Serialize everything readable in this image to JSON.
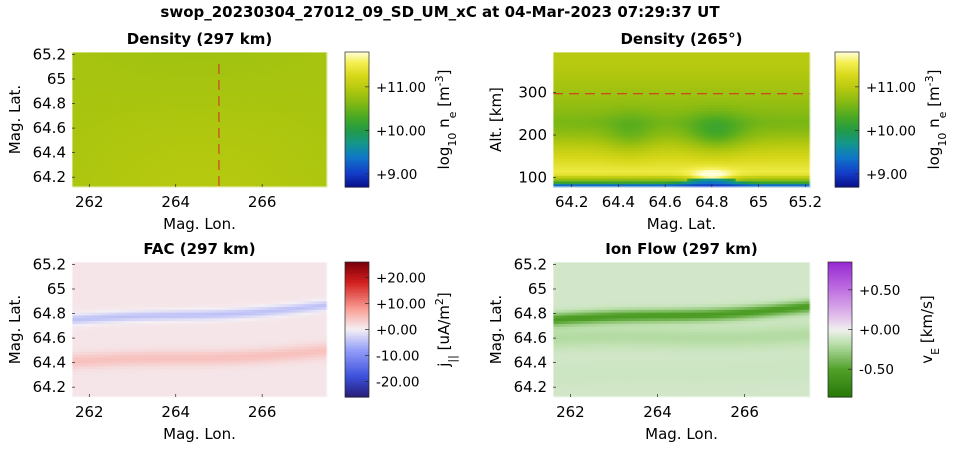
{
  "figure": {
    "title": "swop_20230304_27012_09_SD_UM_xC at 04-Mar-2023 07:29:37 UT"
  },
  "chart_data": [
    {
      "id": "density-horizontal",
      "type": "heatmap",
      "title": "Density (297 km)",
      "xlabel": "Mag. Lon.",
      "ylabel": "Mag. Lat.",
      "xlim": [
        261.6,
        267.5
      ],
      "ylim": [
        64.12,
        65.22
      ],
      "x_ticks": [
        "262",
        "264",
        "266"
      ],
      "x_tick_values": [
        262,
        264,
        266
      ],
      "y_ticks": [
        "64.2",
        "64.4",
        "64.6",
        "64.8",
        "65",
        "65.2"
      ],
      "y_tick_values": [
        64.2,
        64.4,
        64.6,
        64.8,
        65.0,
        65.2
      ],
      "colorbar": {
        "label_parts": [
          "log",
          "10",
          " n",
          "e",
          " [m",
          "-3",
          "]"
        ],
        "ticks": [
          "+9.00",
          "+10.00",
          "+11.00"
        ],
        "tick_values": [
          9,
          10,
          11
        ],
        "range": [
          8.7,
          11.8
        ],
        "colormap": "parula"
      },
      "field_value": 10.9,
      "marker_line": {
        "orientation": "vertical",
        "value": 265.0,
        "color": "#d62728"
      }
    },
    {
      "id": "density-vertical",
      "type": "heatmap",
      "title": "Density (265°)",
      "xlabel": "Mag. Lat.",
      "ylabel": "Alt. [km]",
      "xlim": [
        64.12,
        65.22
      ],
      "ylim": [
        78,
        395
      ],
      "x_ticks": [
        "64.2",
        "64.4",
        "64.6",
        "64.8",
        "65",
        "65.2"
      ],
      "x_tick_values": [
        64.2,
        64.4,
        64.6,
        64.8,
        65.0,
        65.2
      ],
      "y_ticks": [
        "100",
        "200",
        "300"
      ],
      "y_tick_values": [
        100,
        200,
        300
      ],
      "colorbar": {
        "label_parts": [
          "log",
          "10",
          " n",
          "e",
          " [m",
          "-3",
          "]"
        ],
        "ticks": [
          "+9.00",
          "+10.00",
          "+11.00"
        ],
        "tick_values": [
          9,
          10,
          11
        ],
        "range": [
          8.7,
          11.8
        ],
        "colormap": "parula"
      },
      "profile": {
        "bottom_value": 8.9,
        "peak_altitude_km": 110,
        "peak_value": 11.5,
        "top_value": 10.8,
        "bright_spot": {
          "lat": 64.8,
          "alt_km": 95,
          "value": 11.8
        },
        "dim_spot": {
          "lat": 64.82,
          "alt_km": 205,
          "value": 10.15
        }
      },
      "marker_line": {
        "orientation": "horizontal",
        "value": 297,
        "color": "#d62728"
      }
    },
    {
      "id": "fac",
      "type": "heatmap",
      "title": "FAC (297 km)",
      "xlabel": "Mag. Lon.",
      "ylabel": "Mag. Lat.",
      "xlim": [
        261.6,
        267.5
      ],
      "ylim": [
        64.12,
        65.22
      ],
      "x_ticks": [
        "262",
        "264",
        "266"
      ],
      "x_tick_values": [
        262,
        264,
        266
      ],
      "y_ticks": [
        "64.2",
        "64.4",
        "64.6",
        "64.8",
        "65",
        "65.2"
      ],
      "y_tick_values": [
        64.2,
        64.4,
        64.6,
        64.8,
        65.0,
        65.2
      ],
      "colorbar": {
        "label_parts": [
          "j",
          "||",
          " [uA/m",
          "2",
          "]"
        ],
        "ticks": [
          "+20.00",
          "+10.00",
          "+0.00",
          "-10.00",
          "-20.00"
        ],
        "tick_values": [
          20,
          10,
          0,
          -10,
          -20
        ],
        "range": [
          -26,
          26
        ],
        "colormap": "blue-white-red"
      },
      "bands": [
        {
          "lat_at_start": 64.75,
          "lat_at_end": 64.86,
          "width_deg": 0.04,
          "peak_value": -4.5
        },
        {
          "lat_at_start": 64.41,
          "lat_at_end": 64.49,
          "width_deg": 0.06,
          "peak_value": 4.5
        }
      ],
      "background_value": 1.0
    },
    {
      "id": "ion-flow",
      "type": "heatmap",
      "title": "Ion Flow (297 km)",
      "xlabel": "Mag. Lon.",
      "ylabel": "Mag. Lat.",
      "xlim": [
        261.6,
        267.5
      ],
      "ylim": [
        64.12,
        65.22
      ],
      "x_ticks": [
        "262",
        "264",
        "266"
      ],
      "x_tick_values": [
        262,
        264,
        266
      ],
      "y_ticks": [
        "64.2",
        "64.4",
        "64.6",
        "64.8",
        "65",
        "65.2"
      ],
      "y_tick_values": [
        64.2,
        64.4,
        64.6,
        64.8,
        65.0,
        65.2
      ],
      "colorbar": {
        "label_parts": [
          "v",
          "E",
          " [km/s]"
        ],
        "ticks": [
          "+0.50",
          "+0.00",
          "-0.50"
        ],
        "tick_values": [
          0.5,
          0.0,
          -0.5
        ],
        "range": [
          -0.85,
          0.85
        ],
        "colormap": "green-white-purple"
      },
      "bands": [
        {
          "lat_at_start": 64.75,
          "lat_at_end": 64.85,
          "width_deg": 0.05,
          "peak_value": -0.55
        },
        {
          "lat_at_start": 64.6,
          "lat_at_end": 64.62,
          "width_deg": 0.09,
          "peak_value": -0.2
        },
        {
          "lat_at_start": 64.3,
          "lat_at_end": 64.35,
          "width_deg": 0.1,
          "peak_value": -0.12
        }
      ],
      "background_value": -0.1
    }
  ]
}
